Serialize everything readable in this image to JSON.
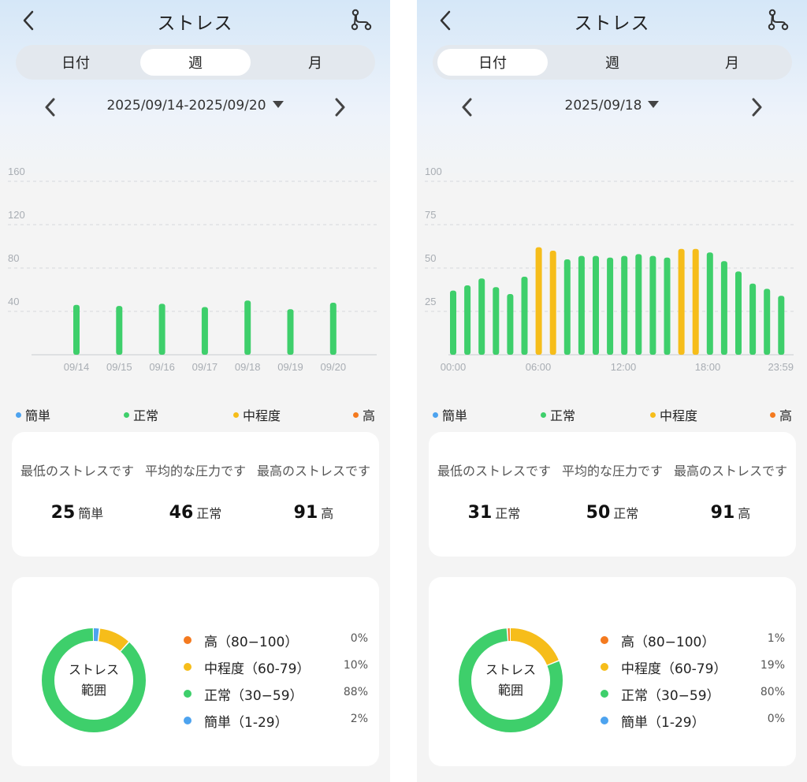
{
  "colors": {
    "easy": "#4da3ef",
    "normal": "#3ecf6b",
    "moderate": "#f6bd1a",
    "high": "#f47a1f"
  },
  "panels": [
    {
      "title": "ストレス",
      "tabs": [
        "日付",
        "週",
        "月"
      ],
      "active_tab": 1,
      "date": "2025/09/14-2025/09/20",
      "legend": [
        "簡単",
        "正常",
        "中程度",
        "高"
      ],
      "stats": [
        {
          "label": "最低のストレスです",
          "value": "25",
          "level": "簡単"
        },
        {
          "label": "平均的な圧力です",
          "value": "46",
          "level": "正常"
        },
        {
          "label": "最高のストレスです",
          "value": "91",
          "level": "高"
        }
      ],
      "range_title": "ストレス\n範囲",
      "ranges": [
        {
          "label": "高（80−100）",
          "pct": "0%"
        },
        {
          "label": "中程度（60-79）",
          "pct": "10%"
        },
        {
          "label": "正常（30−59）",
          "pct": "88%"
        },
        {
          "label": "簡単（1-29）",
          "pct": "2%"
        }
      ],
      "chart_data": {
        "type": "bar",
        "ylim": [
          0,
          160
        ],
        "yticks": [
          "160",
          "120",
          "80",
          "40"
        ],
        "ytick_values": [
          160,
          120,
          80,
          40
        ],
        "categories": [
          "09/14",
          "09/15",
          "09/16",
          "09/17",
          "09/18",
          "09/19",
          "09/20"
        ],
        "values": [
          46,
          45,
          47,
          44,
          50,
          42,
          48
        ],
        "bar_colors": [
          "normal",
          "normal",
          "normal",
          "normal",
          "normal",
          "normal",
          "normal"
        ],
        "donut": [
          {
            "key": "high",
            "value": 0
          },
          {
            "key": "moderate",
            "value": 10
          },
          {
            "key": "normal",
            "value": 88
          },
          {
            "key": "easy",
            "value": 2
          }
        ]
      }
    },
    {
      "title": "ストレス",
      "tabs": [
        "日付",
        "週",
        "月"
      ],
      "active_tab": 0,
      "date": "2025/09/18",
      "legend": [
        "簡単",
        "正常",
        "中程度",
        "高"
      ],
      "stats": [
        {
          "label": "最低のストレスです",
          "value": "31",
          "level": "正常"
        },
        {
          "label": "平均的な圧力です",
          "value": "50",
          "level": "正常"
        },
        {
          "label": "最高のストレスです",
          "value": "91",
          "level": "高"
        }
      ],
      "range_title": "ストレス\n範囲",
      "ranges": [
        {
          "label": "高（80−100）",
          "pct": "1%"
        },
        {
          "label": "中程度（60-79）",
          "pct": "19%"
        },
        {
          "label": "正常（30−59）",
          "pct": "80%"
        },
        {
          "label": "簡単（1-29）",
          "pct": "0%"
        }
      ],
      "chart_data": {
        "type": "bar",
        "ylim": [
          0,
          100
        ],
        "yticks": [
          "100",
          "75",
          "50",
          "25"
        ],
        "ytick_values": [
          100,
          75,
          50,
          25
        ],
        "xtick_labels": [
          "00:00",
          "06:00",
          "12:00",
          "18:00",
          "23:59"
        ],
        "values": [
          37,
          40,
          44,
          39,
          35,
          45,
          62,
          60,
          55,
          57,
          57,
          56,
          57,
          58,
          57,
          56,
          61,
          61,
          59,
          54,
          48,
          41,
          38,
          34
        ],
        "bar_colors": [
          "normal",
          "normal",
          "normal",
          "normal",
          "normal",
          "normal",
          "moderate",
          "moderate",
          "normal",
          "normal",
          "normal",
          "normal",
          "normal",
          "normal",
          "normal",
          "normal",
          "moderate",
          "moderate",
          "normal",
          "normal",
          "normal",
          "normal",
          "normal",
          "normal"
        ],
        "donut": [
          {
            "key": "high",
            "value": 1
          },
          {
            "key": "moderate",
            "value": 19
          },
          {
            "key": "normal",
            "value": 80
          },
          {
            "key": "easy",
            "value": 0
          }
        ]
      }
    }
  ]
}
